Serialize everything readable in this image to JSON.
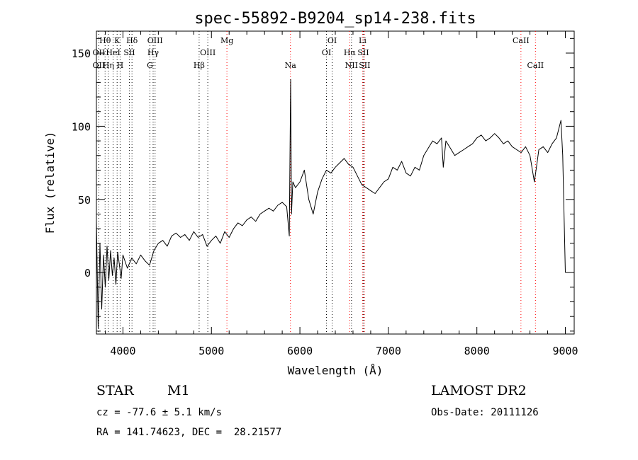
{
  "chart_data": {
    "type": "line",
    "title": "spec-55892-B9204_sp14-238.fits",
    "xlabel": "Wavelength (Å)",
    "ylabel": "Flux (relative)",
    "xlim": [
      3700,
      9100
    ],
    "ylim": [
      -42,
      165
    ],
    "x_ticks": [
      4000,
      5000,
      6000,
      7000,
      8000,
      9000
    ],
    "y_ticks": [
      0,
      50,
      100,
      150
    ],
    "grid": false,
    "series": [
      {
        "x": [
          3700,
          3720,
          3740,
          3760,
          3780,
          3800,
          3820,
          3840,
          3860,
          3880,
          3900,
          3920,
          3940,
          3960,
          3980,
          4000,
          4050,
          4100,
          4150,
          4200,
          4250,
          4300,
          4350,
          4400,
          4450,
          4500,
          4550,
          4600,
          4650,
          4700,
          4750,
          4800,
          4850,
          4900,
          4950,
          5000,
          5050,
          5100,
          5150,
          5200,
          5250,
          5300,
          5350,
          5400,
          5450,
          5500,
          5550,
          5600,
          5650,
          5700,
          5750,
          5800,
          5850,
          5880,
          5895,
          5905,
          5920,
          5950,
          6000,
          6050,
          6100,
          6150,
          6200,
          6250,
          6300,
          6350,
          6400,
          6450,
          6500,
          6550,
          6600,
          6650,
          6700,
          6750,
          6800,
          6850,
          6900,
          6950,
          7000,
          7050,
          7100,
          7150,
          7200,
          7250,
          7300,
          7350,
          7400,
          7450,
          7500,
          7550,
          7600,
          7620,
          7650,
          7700,
          7750,
          7800,
          7850,
          7900,
          7950,
          8000,
          8050,
          8100,
          8150,
          8200,
          8250,
          8300,
          8350,
          8400,
          8450,
          8500,
          8550,
          8600,
          8650,
          8680,
          8700,
          8750,
          8800,
          8850,
          8900,
          8950,
          8970,
          9000
        ],
        "y": [
          35,
          -38,
          20,
          -25,
          12,
          -10,
          18,
          -5,
          15,
          -2,
          10,
          -8,
          14,
          5,
          -4,
          12,
          3,
          10,
          6,
          12,
          8,
          5,
          15,
          20,
          22,
          18,
          25,
          27,
          24,
          26,
          22,
          28,
          24,
          26,
          18,
          22,
          25,
          20,
          28,
          24,
          30,
          34,
          32,
          36,
          38,
          35,
          40,
          42,
          44,
          42,
          46,
          48,
          45,
          25,
          132,
          40,
          62,
          58,
          62,
          70,
          50,
          40,
          55,
          64,
          70,
          68,
          72,
          75,
          78,
          74,
          72,
          66,
          60,
          58,
          56,
          54,
          58,
          62,
          64,
          72,
          70,
          76,
          68,
          66,
          72,
          70,
          80,
          85,
          90,
          88,
          92,
          72,
          90,
          85,
          80,
          82,
          84,
          86,
          88,
          92,
          94,
          90,
          92,
          95,
          92,
          88,
          90,
          86,
          84,
          82,
          86,
          80,
          62,
          75,
          84,
          86,
          82,
          88,
          92,
          104,
          80,
          0
        ]
      }
    ],
    "lines": [
      {
        "name": "Hθ",
        "wl": 3798,
        "color": "#000000",
        "row": 1
      },
      {
        "name": "K",
        "wl": 3934,
        "color": "#000000",
        "row": 1
      },
      {
        "name": "Hδ",
        "wl": 4102,
        "color": "#000000",
        "row": 1
      },
      {
        "name": "OIII",
        "wl": 4363,
        "color": "#000000",
        "row": 1
      },
      {
        "name": "Mg",
        "wl": 5175,
        "color": "#ff0000",
        "row": 1
      },
      {
        "name": "OI",
        "wl": 6364,
        "color": "#000000",
        "row": 1
      },
      {
        "name": "Li",
        "wl": 6708,
        "color": "#ff0000",
        "row": 1
      },
      {
        "name": "CaII",
        "wl": 8498,
        "color": "#ff0000",
        "row": 1
      },
      {
        "name": "OII",
        "wl": 3727,
        "color": "#000000",
        "row": 2
      },
      {
        "name": "HeI",
        "wl": 3889,
        "color": "#000000",
        "row": 2
      },
      {
        "name": "SII",
        "wl": 4072,
        "color": "#000000",
        "row": 2
      },
      {
        "name": "Hγ",
        "wl": 4341,
        "color": "#000000",
        "row": 2
      },
      {
        "name": "OIII",
        "wl": 4959,
        "color": "#000000",
        "row": 2
      },
      {
        "name": "OI",
        "wl": 6300,
        "color": "#000000",
        "row": 2
      },
      {
        "name": "Hα",
        "wl": 6563,
        "color": "#ff0000",
        "row": 2
      },
      {
        "name": "SII",
        "wl": 6716,
        "color": "#000000",
        "row": 2
      },
      {
        "name": "OII",
        "wl": 3727,
        "color": "#000000",
        "row": 3
      },
      {
        "name": "Hη",
        "wl": 3835,
        "color": "#000000",
        "row": 3
      },
      {
        "name": "H",
        "wl": 3968,
        "color": "#000000",
        "row": 3
      },
      {
        "name": "G",
        "wl": 4305,
        "color": "#000000",
        "row": 3
      },
      {
        "name": "Hβ",
        "wl": 4861,
        "color": "#000000",
        "row": 3
      },
      {
        "name": "Na",
        "wl": 5893,
        "color": "#ff0000",
        "row": 3
      },
      {
        "name": "NII",
        "wl": 6583,
        "color": "#000000",
        "row": 3
      },
      {
        "name": "SII",
        "wl": 6731,
        "color": "#ff0000",
        "row": 3
      },
      {
        "name": "CaII",
        "wl": 8662,
        "color": "#ff0000",
        "row": 3
      }
    ]
  },
  "info": {
    "object_class": "STAR",
    "subclass": "M1",
    "survey": "LAMOST DR2",
    "redshift": "cz = -77.6 ± 5.1 km/s",
    "obs_date": "Obs-Date: 20111126",
    "coords": "RA = 141.74623, DEC =  28.21577"
  }
}
